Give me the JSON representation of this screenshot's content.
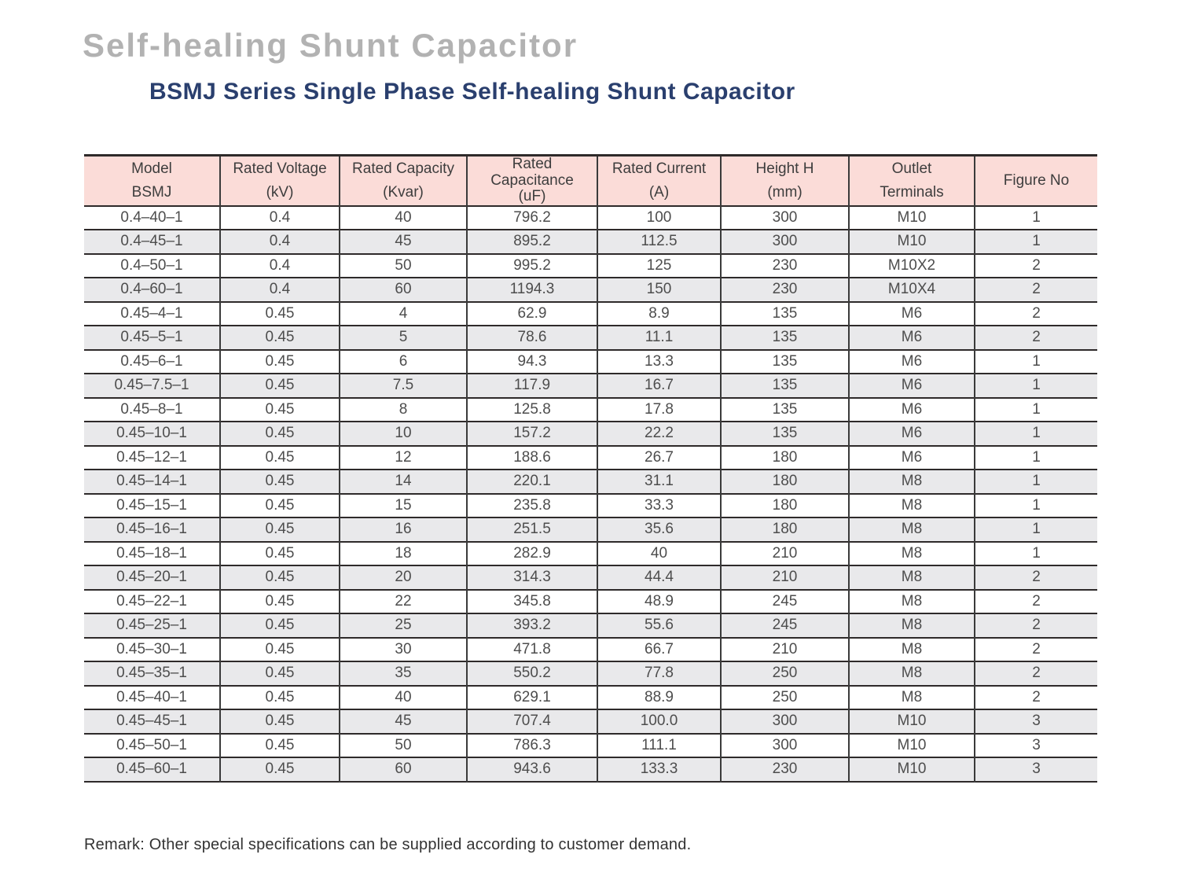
{
  "page": {
    "title": "Self-healing Shunt Capacitor",
    "subtitle": "BSMJ Series Single Phase Self-healing Shunt Capacitor",
    "remark": "Remark: Other special specifications can be supplied according to customer demand."
  },
  "colors": {
    "header_bg": "#fbdcd8",
    "alt_row_bg": "#e9e9eb",
    "title_gray": "#b2b2b2",
    "subtitle_navy": "#2a3f6e",
    "border_dark": "#2e2a2a"
  },
  "table": {
    "headers": [
      [
        "Model",
        "BSMJ"
      ],
      [
        "Rated Voltage",
        "(kV)"
      ],
      [
        "Rated Capacity",
        "(Kvar)"
      ],
      [
        "Rated",
        "Capacitance",
        "(uF)"
      ],
      [
        "Rated Current",
        "(A)"
      ],
      [
        "Height H",
        "(mm)"
      ],
      [
        "Outlet",
        "Terminals"
      ],
      [
        "Figure No"
      ]
    ],
    "rows": [
      [
        "0.4–40–1",
        "0.4",
        "40",
        "796.2",
        "100",
        "300",
        "M10",
        "1"
      ],
      [
        "0.4–45–1",
        "0.4",
        "45",
        "895.2",
        "112.5",
        "300",
        "M10",
        "1"
      ],
      [
        "0.4–50–1",
        "0.4",
        "50",
        "995.2",
        "125",
        "230",
        "M10X2",
        "2"
      ],
      [
        "0.4–60–1",
        "0.4",
        "60",
        "1194.3",
        "150",
        "230",
        "M10X4",
        "2"
      ],
      [
        "0.45–4–1",
        "0.45",
        "4",
        "62.9",
        "8.9",
        "135",
        "M6",
        "2"
      ],
      [
        "0.45–5–1",
        "0.45",
        "5",
        "78.6",
        "11.1",
        "135",
        "M6",
        "2"
      ],
      [
        "0.45–6–1",
        "0.45",
        "6",
        "94.3",
        "13.3",
        "135",
        "M6",
        "1"
      ],
      [
        "0.45–7.5–1",
        "0.45",
        "7.5",
        "117.9",
        "16.7",
        "135",
        "M6",
        "1"
      ],
      [
        "0.45–8–1",
        "0.45",
        "8",
        "125.8",
        "17.8",
        "135",
        "M6",
        "1"
      ],
      [
        "0.45–10–1",
        "0.45",
        "10",
        "157.2",
        "22.2",
        "135",
        "M6",
        "1"
      ],
      [
        "0.45–12–1",
        "0.45",
        "12",
        "188.6",
        "26.7",
        "180",
        "M6",
        "1"
      ],
      [
        "0.45–14–1",
        "0.45",
        "14",
        "220.1",
        "31.1",
        "180",
        "M8",
        "1"
      ],
      [
        "0.45–15–1",
        "0.45",
        "15",
        "235.8",
        "33.3",
        "180",
        "M8",
        "1"
      ],
      [
        "0.45–16–1",
        "0.45",
        "16",
        "251.5",
        "35.6",
        "180",
        "M8",
        "1"
      ],
      [
        "0.45–18–1",
        "0.45",
        "18",
        "282.9",
        "40",
        "210",
        "M8",
        "1"
      ],
      [
        "0.45–20–1",
        "0.45",
        "20",
        "314.3",
        "44.4",
        "210",
        "M8",
        "2"
      ],
      [
        "0.45–22–1",
        "0.45",
        "22",
        "345.8",
        "48.9",
        "245",
        "M8",
        "2"
      ],
      [
        "0.45–25–1",
        "0.45",
        "25",
        "393.2",
        "55.6",
        "245",
        "M8",
        "2"
      ],
      [
        "0.45–30–1",
        "0.45",
        "30",
        "471.8",
        "66.7",
        "210",
        "M8",
        "2"
      ],
      [
        "0.45–35–1",
        "0.45",
        "35",
        "550.2",
        "77.8",
        "250",
        "M8",
        "2"
      ],
      [
        "0.45–40–1",
        "0.45",
        "40",
        "629.1",
        "88.9",
        "250",
        "M8",
        "2"
      ],
      [
        "0.45–45–1",
        "0.45",
        "45",
        "707.4",
        "100.0",
        "300",
        "M10",
        "3"
      ],
      [
        "0.45–50–1",
        "0.45",
        "50",
        "786.3",
        "111.1",
        "300",
        "M10",
        "3"
      ],
      [
        "0.45–60–1",
        "0.45",
        "60",
        "943.6",
        "133.3",
        "230",
        "M10",
        "3"
      ]
    ]
  }
}
